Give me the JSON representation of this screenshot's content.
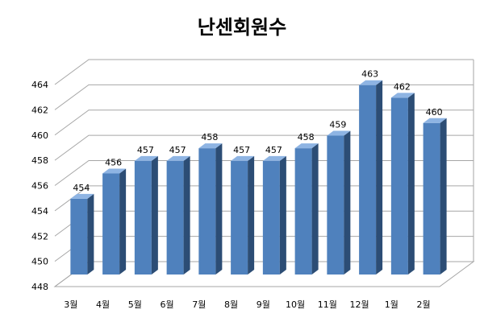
{
  "chart_data": {
    "type": "bar",
    "title": "난센회원수",
    "xlabel": "",
    "ylabel": "",
    "categories": [
      "3월",
      "4월",
      "5월",
      "6월",
      "7월",
      "8월",
      "9월",
      "10월",
      "11월",
      "12월",
      "1월",
      "2월"
    ],
    "values": [
      454,
      456,
      457,
      457,
      458,
      457,
      457,
      458,
      459,
      463,
      462,
      460
    ],
    "ylim": [
      448,
      464
    ],
    "yticks": [
      448,
      450,
      452,
      454,
      456,
      458,
      460,
      462,
      464
    ],
    "style": "3d-column",
    "grid": true,
    "legend": "none",
    "colors": {
      "bar_front": "#4f81bd",
      "bar_side": "#2c4d75",
      "bar_top": "#8eb4e3",
      "grid": "#a6a6a6"
    }
  }
}
